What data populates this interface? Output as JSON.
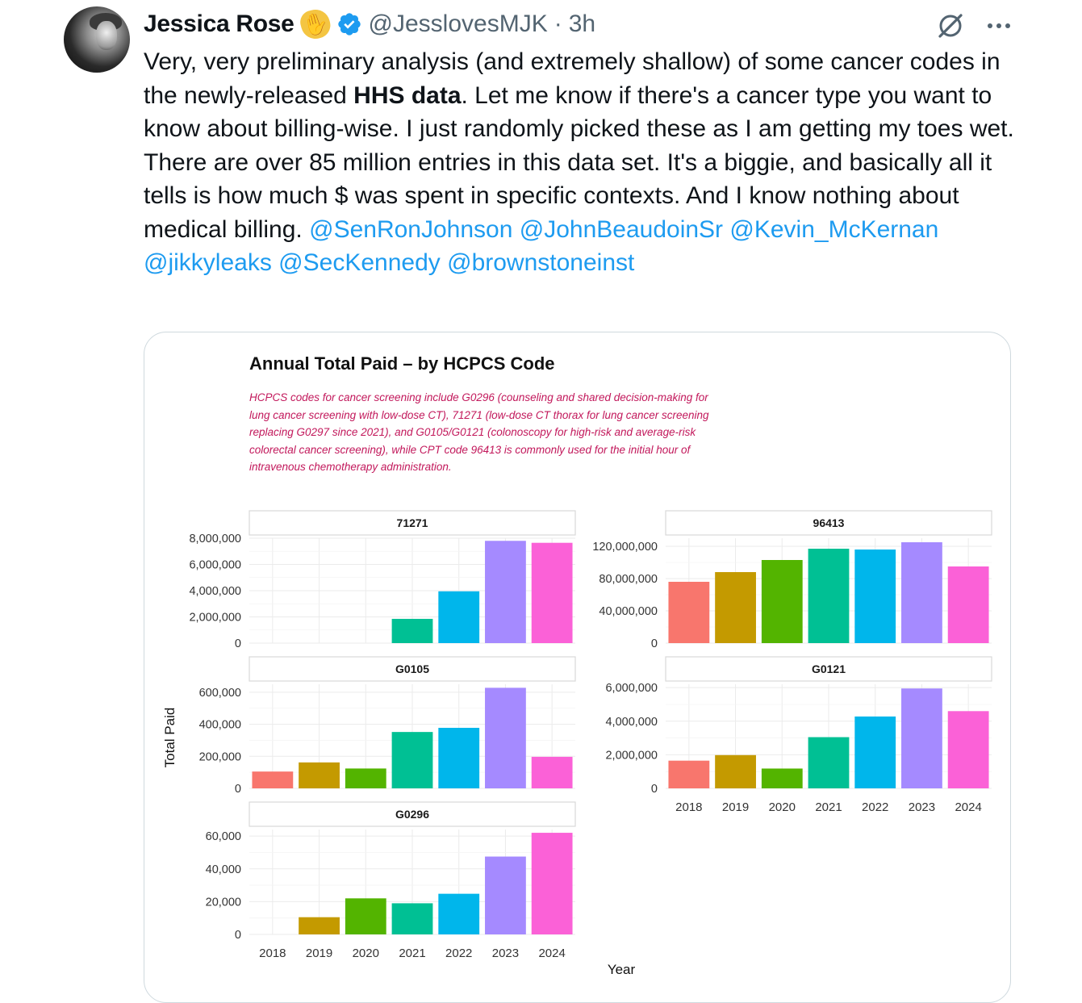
{
  "post": {
    "author_name": "Jessica Rose",
    "handle": "@JesslovesMJK",
    "separator": "·",
    "time": "3h",
    "body_part1": "Very, very preliminary analysis (and extremely shallow) of some cancer codes in the newly-released ",
    "body_bold": "HHS data",
    "body_part2": ". Let me know if there's a cancer type you want to know about billing-wise. I just randomly picked these as I am getting my toes wet. There are over 85 million entries in this data set. It's a biggie, and basically all it tells is how much $ was spent in specific contexts. And I know nothing about medical billing.",
    "mentions": [
      "@SenRonJohnson",
      "@JohnBeaudoinSr",
      "@Kevin_McKernan",
      "@jikkyleaks",
      "@SecKennedy",
      "@brownstoneinst"
    ],
    "icons": {
      "avatar": "avatar",
      "emoji": "call-me-hand-emoji",
      "verified": "verified-badge-icon",
      "grok": "grok-icon",
      "more": "more-icon"
    },
    "colors": {
      "text": "#0f1419",
      "muted": "#536471",
      "link": "#1d9bf0",
      "verified": "#1d9bf0",
      "caption": "#c2185b"
    }
  },
  "chart_data": {
    "type": "bar",
    "title": "Annual Total Paid – by HCPCS Code",
    "subtitle": "HCPCS codes for cancer screening include G0296 (counseling and shared decision-making for lung cancer screening with low-dose CT), 71271 (low-dose CT thorax for lung cancer screening replacing G0297 since 2021), and G0105/G0121 (colonoscopy for high-risk and average-risk colorectal cancer screening), while CPT code 96413 is commonly used for the initial hour of intravenous chemotherapy administration.",
    "xlabel": "Year",
    "ylabel": "Total Paid",
    "categories": [
      "2018",
      "2019",
      "2020",
      "2021",
      "2022",
      "2023",
      "2024"
    ],
    "bar_colors": [
      "#f8766d",
      "#c49a00",
      "#53b400",
      "#00c094",
      "#00b6eb",
      "#a58aff",
      "#fb61d7"
    ],
    "grid": true,
    "panels": [
      {
        "name": "71271",
        "values": [
          0,
          0,
          0,
          1850000,
          3950000,
          7800000,
          7650000
        ],
        "ylim": [
          0,
          8000000
        ],
        "ticks": [
          0,
          2000000,
          4000000,
          6000000,
          8000000
        ],
        "tick_labels": [
          "0",
          "2,000,000",
          "4,000,000",
          "6,000,000",
          "8,000,000"
        ]
      },
      {
        "name": "96413",
        "values": [
          76000000,
          88000000,
          103000000,
          117000000,
          116000000,
          125000000,
          95000000
        ],
        "ylim": [
          0,
          130000000
        ],
        "ticks": [
          0,
          40000000,
          80000000,
          120000000
        ],
        "tick_labels": [
          "0",
          "40,000,000",
          "80,000,000",
          "120,000,000"
        ]
      },
      {
        "name": "G0105",
        "values": [
          105000,
          162000,
          124000,
          352000,
          378000,
          628000,
          197000
        ],
        "ylim": [
          0,
          650000
        ],
        "ticks": [
          0,
          200000,
          400000,
          600000
        ],
        "tick_labels": [
          "0",
          "200,000",
          "400,000",
          "600,000"
        ]
      },
      {
        "name": "G0121",
        "values": [
          1650000,
          1980000,
          1180000,
          3050000,
          4280000,
          5950000,
          4600000
        ],
        "ylim": [
          0,
          6200000
        ],
        "ticks": [
          0,
          2000000,
          4000000,
          6000000
        ],
        "tick_labels": [
          "0",
          "2,000,000",
          "4,000,000",
          "6,000,000"
        ]
      },
      {
        "name": "G0296",
        "values": [
          0,
          10500,
          22000,
          19000,
          24800,
          47500,
          62000
        ],
        "ylim": [
          0,
          64000
        ],
        "ticks": [
          0,
          20000,
          40000,
          60000
        ],
        "tick_labels": [
          "0",
          "20,000",
          "40,000",
          "60,000"
        ]
      }
    ]
  }
}
